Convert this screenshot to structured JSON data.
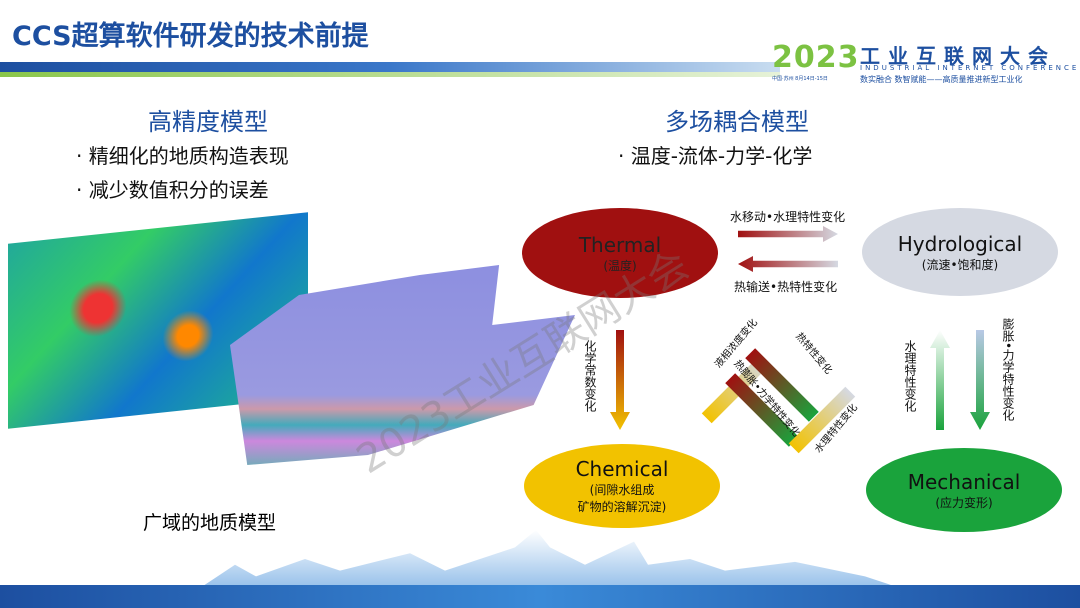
{
  "title": "CCS超算软件研发的技术前提",
  "logo": {
    "year": "2023",
    "name": "工业互联网大会",
    "english": "INDUSTRIAL INTERNET CONFERENCE",
    "slogan": "数实融合 数智赋能——高质量推进新型工业化",
    "location": "中国·苏州 8月14日-15日"
  },
  "left": {
    "heading": "高精度模型",
    "bullets": [
      "精细化的地质构造表现",
      "减少数值积分的误差"
    ],
    "caption": "广域的地质模型"
  },
  "right": {
    "heading": "多场耦合模型",
    "bullets": [
      "温度-流体-力学-化学"
    ],
    "nodes": {
      "thermal": {
        "name": "Thermal",
        "sub": "(温度)"
      },
      "hydro": {
        "name": "Hydrological",
        "sub": "(流速•饱和度)"
      },
      "chem": {
        "name": "Chemical",
        "sub1": "(间隙水组成",
        "sub2": "矿物的溶解沉淀)"
      },
      "mech": {
        "name": "Mechanical",
        "sub": "(应力变形)"
      }
    },
    "labels": {
      "t2h": "水移动•水理特性变化",
      "h2t": "热输送•热特性变化",
      "t2c": "化学常数变化",
      "h2m": "水理特性变化",
      "m2h": "膨胀•力学特性变化",
      "c_liq": "液相浓度变化",
      "heat": "热特性变化",
      "expand": "热膨胀•力学特性变化",
      "water": "水理特性变化"
    }
  },
  "watermark": "2023工业互联网大会",
  "colors": {
    "brand": "#1d4fa0",
    "green": "#7cc242",
    "thermal": "#a01010",
    "chemical": "#f2c200",
    "mechanical": "#1aa33c",
    "hydro": "#d5d9e2"
  }
}
